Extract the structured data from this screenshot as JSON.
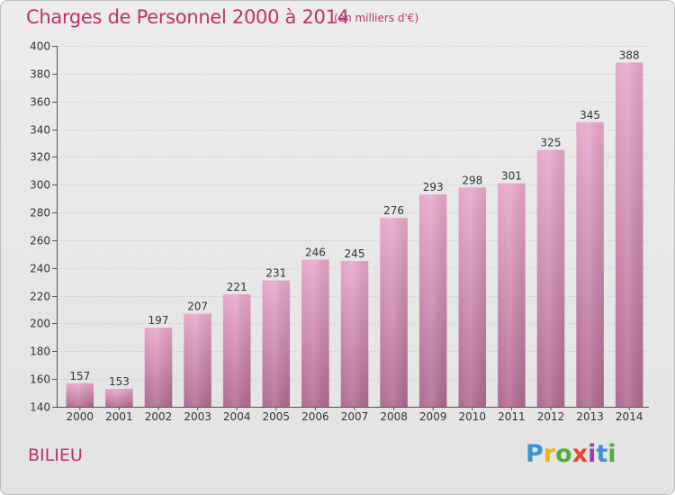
{
  "header": {
    "title": "Charges de Personnel 2000 à 2014",
    "subtitle": "(en milliers d'€)"
  },
  "footer": {
    "commune": "BILIEU",
    "logo_text": "Proxiti"
  },
  "colors": {
    "accent": "#c0306e",
    "bar_top": "#e8a8cc",
    "bar_bottom": "#b06a93"
  },
  "chart_data": {
    "type": "bar",
    "title": "Charges de Personnel 2000 à 2014",
    "subtitle": "(en milliers d'€)",
    "xlabel": "",
    "ylabel": "",
    "categories": [
      "2000",
      "2001",
      "2002",
      "2003",
      "2004",
      "2005",
      "2006",
      "2007",
      "2008",
      "2009",
      "2010",
      "2011",
      "2012",
      "2013",
      "2014"
    ],
    "values": [
      157,
      153,
      197,
      207,
      221,
      231,
      246,
      245,
      276,
      293,
      298,
      301,
      325,
      345,
      388
    ],
    "ylim": [
      140,
      400
    ],
    "yticks": [
      140,
      160,
      180,
      200,
      220,
      240,
      260,
      280,
      300,
      320,
      340,
      360,
      380,
      400
    ],
    "grid": true,
    "data_labels": true
  }
}
